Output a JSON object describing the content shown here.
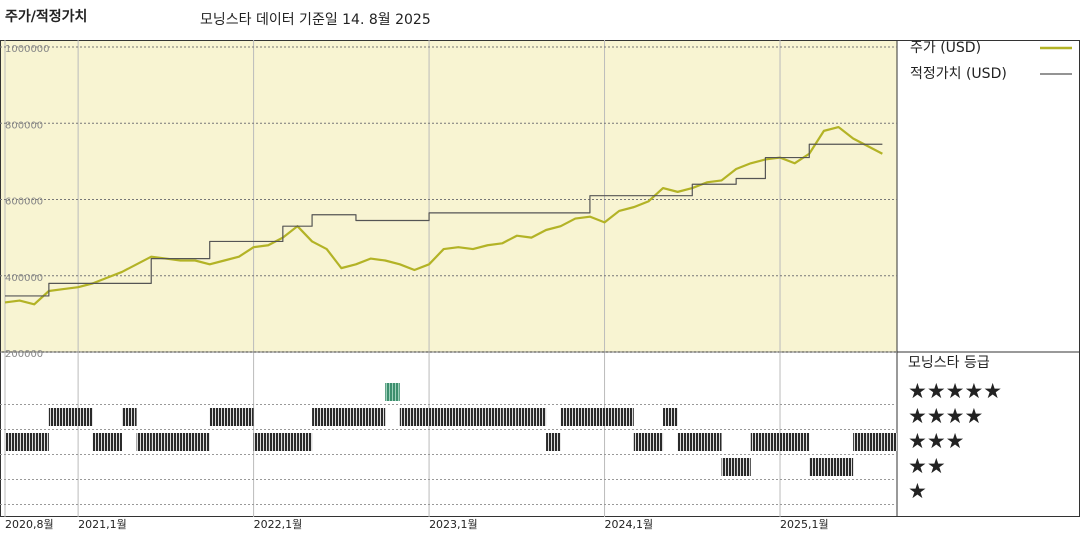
{
  "chart_data": {
    "type": "line",
    "title": "주가/적정가치",
    "subtitle": "모닝스타 데이터 기준일 14. 8월 2025",
    "x": [
      "2020-08",
      "2020-09",
      "2020-10",
      "2020-11",
      "2020-12",
      "2021-01",
      "2021-02",
      "2021-03",
      "2021-04",
      "2021-05",
      "2021-06",
      "2021-07",
      "2021-08",
      "2021-09",
      "2021-10",
      "2021-11",
      "2021-12",
      "2022-01",
      "2022-02",
      "2022-03",
      "2022-04",
      "2022-05",
      "2022-06",
      "2022-07",
      "2022-08",
      "2022-09",
      "2022-10",
      "2022-11",
      "2022-12",
      "2023-01",
      "2023-02",
      "2023-03",
      "2023-04",
      "2023-05",
      "2023-06",
      "2023-07",
      "2023-08",
      "2023-09",
      "2023-10",
      "2023-11",
      "2023-12",
      "2024-01",
      "2024-02",
      "2024-03",
      "2024-04",
      "2024-05",
      "2024-06",
      "2024-07",
      "2024-08",
      "2024-09",
      "2024-10",
      "2024-11",
      "2024-12",
      "2025-01",
      "2025-02",
      "2025-03",
      "2025-04",
      "2025-05",
      "2025-06",
      "2025-07",
      "2025-08"
    ],
    "xlim": [
      "2020-08",
      "2025-09"
    ],
    "xticks": [
      {
        "value": "2020-08",
        "label": "2020,8월"
      },
      {
        "value": "2021-01",
        "label": "2021,1월"
      },
      {
        "value": "2022-01",
        "label": "2022,1월"
      },
      {
        "value": "2023-01",
        "label": "2023,1월"
      },
      {
        "value": "2024-01",
        "label": "2024,1월"
      },
      {
        "value": "2025-01",
        "label": "2025,1월"
      }
    ],
    "ylim": [
      200000,
      1000000
    ],
    "yticks": [
      200000,
      400000,
      600000,
      800000,
      1000000
    ],
    "grid": true,
    "series": [
      {
        "name": "주가 (USD)",
        "color": "#b3b326",
        "step": false,
        "values": [
          330000,
          335000,
          325000,
          360000,
          365000,
          370000,
          380000,
          395000,
          410000,
          430000,
          450000,
          445000,
          440000,
          440000,
          430000,
          440000,
          450000,
          475000,
          480000,
          500000,
          530000,
          490000,
          470000,
          420000,
          430000,
          445000,
          440000,
          430000,
          415000,
          430000,
          470000,
          475000,
          470000,
          480000,
          485000,
          505000,
          500000,
          520000,
          530000,
          550000,
          555000,
          540000,
          570000,
          580000,
          595000,
          630000,
          620000,
          630000,
          645000,
          650000,
          680000,
          695000,
          705000,
          710000,
          695000,
          720000,
          780000,
          790000,
          760000,
          740000,
          720000
        ]
      },
      {
        "name": "적정가치 (USD)",
        "color": "#555555",
        "step": true,
        "values": [
          347000,
          347000,
          347000,
          380000,
          380000,
          380000,
          380000,
          380000,
          380000,
          380000,
          445000,
          445000,
          445000,
          445000,
          490000,
          490000,
          490000,
          490000,
          490000,
          530000,
          530000,
          560000,
          560000,
          560000,
          545000,
          545000,
          545000,
          545000,
          545000,
          565000,
          565000,
          565000,
          565000,
          565000,
          565000,
          565000,
          565000,
          565000,
          565000,
          565000,
          610000,
          610000,
          610000,
          610000,
          610000,
          610000,
          610000,
          640000,
          640000,
          640000,
          655000,
          655000,
          710000,
          710000,
          710000,
          745000,
          745000,
          745000,
          745000,
          745000,
          745000
        ]
      }
    ],
    "ratings": {
      "name": "모닝스타 등급",
      "color": "#2a2a2a",
      "top_color": "#3d8f6e",
      "levels": [
        {
          "value": 5,
          "label": "★★★★★"
        },
        {
          "value": 4,
          "label": "★★★★"
        },
        {
          "value": 3,
          "label": "★★★"
        },
        {
          "value": 2,
          "label": "★★"
        },
        {
          "value": 1,
          "label": "★"
        }
      ],
      "values": [
        3,
        3,
        3,
        4,
        4,
        4,
        3,
        3,
        4,
        3,
        3,
        3,
        3,
        3,
        4,
        4,
        4,
        3,
        3,
        3,
        3,
        4,
        4,
        4,
        4,
        4,
        5,
        4,
        4,
        4,
        4,
        4,
        4,
        4,
        4,
        4,
        4,
        3,
        4,
        4,
        4,
        4,
        4,
        3,
        3,
        4,
        3,
        3,
        3,
        2,
        2,
        3,
        3,
        3,
        3,
        2,
        2,
        2,
        3,
        3,
        3
      ]
    }
  }
}
